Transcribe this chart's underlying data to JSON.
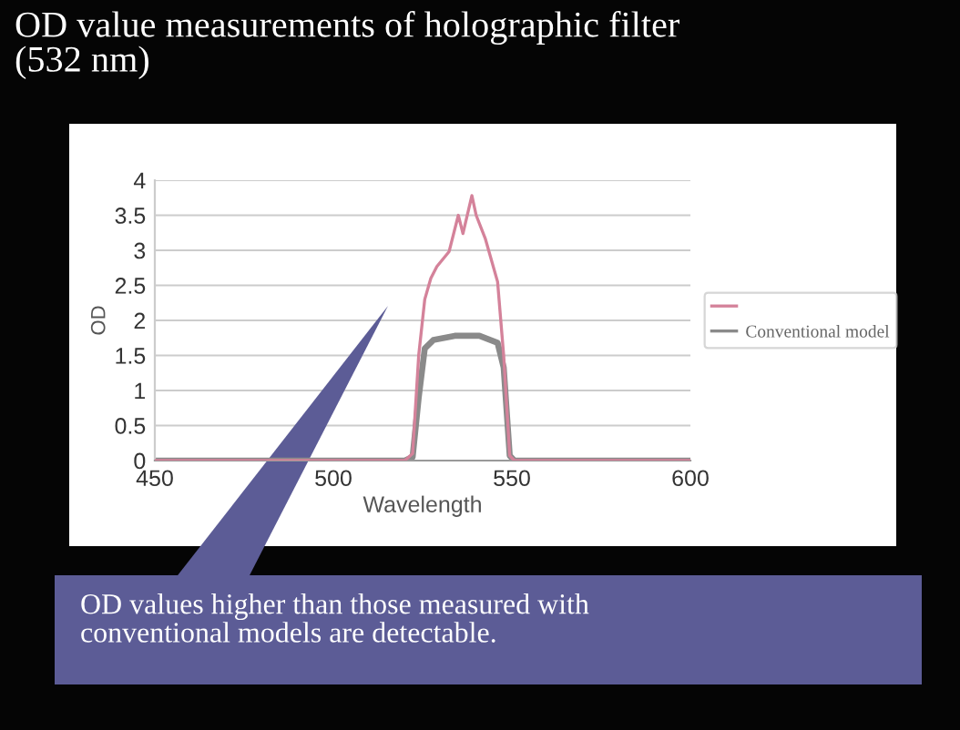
{
  "chart_data": {
    "type": "line",
    "title": "OD value measurements of holographic filter\n(532 nm)",
    "xlabel": "Wavelength",
    "ylabel": "OD",
    "annotations": [
      "OD values higher than those measured with\nconventional models are detectable."
    ],
    "series": [
      {
        "color": "#d4829a",
        "x": [
          450,
          480,
          510,
          520,
          522.2,
          523.9,
          525.6,
          527.3,
          529,
          532.4,
          535,
          536.3,
          538.8,
          540,
          542.6,
          546,
          547.7,
          549.4,
          550.7,
          560,
          580,
          600
        ],
        "values": [
          0,
          0,
          0,
          0,
          0.1,
          1.5,
          2.3,
          2.6,
          2.77,
          2.98,
          3.5,
          3.24,
          3.78,
          3.5,
          3.16,
          2.55,
          1.5,
          0.07,
          0,
          0,
          0,
          0
        ]
      },
      {
        "name": "Conventional model",
        "color": "#8a8a8a",
        "x": [
          450,
          480,
          510,
          520,
          522.2,
          523.9,
          525.6,
          528,
          534,
          540.9,
          546,
          547.7,
          549.4,
          550.7,
          560,
          580,
          600
        ],
        "values": [
          0,
          0,
          0,
          0,
          0.05,
          0.9,
          1.6,
          1.72,
          1.78,
          1.78,
          1.68,
          1.33,
          0.07,
          0,
          0,
          0,
          0
        ]
      }
    ],
    "xlim": [
      450,
      600
    ],
    "xticks": [
      450,
      500,
      550,
      600
    ],
    "ylim": [
      0,
      4
    ],
    "yticks": [
      0,
      0.5,
      1,
      1.5,
      2,
      2.5,
      3,
      3.5,
      4
    ],
    "grid": "y",
    "legend": "right",
    "marker": "none",
    "line_style": "solid"
  }
}
